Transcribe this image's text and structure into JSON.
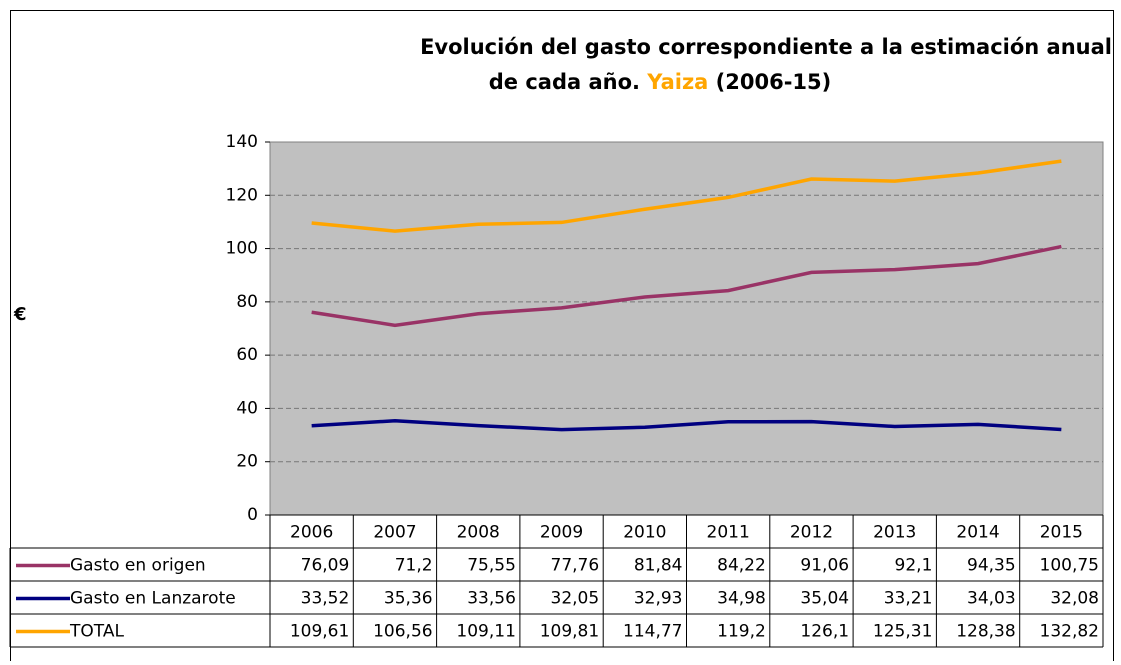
{
  "chart_data": {
    "type": "line",
    "title": [
      "Evolución del gasto correspondiente a la estimación anual",
      "de cada año.",
      "Yaiza",
      "(2006-15)"
    ],
    "title_highlight_color": "#ffa500",
    "y_label": "€",
    "categories": [
      "2006",
      "2007",
      "2008",
      "2009",
      "2010",
      "2011",
      "2012",
      "2013",
      "2014",
      "2015"
    ],
    "series": [
      {
        "name": "Gasto en origen",
        "color": "#993366",
        "values": [
          76.09,
          71.2,
          75.55,
          77.76,
          81.84,
          84.22,
          91.06,
          92.1,
          94.35,
          100.75
        ],
        "value_labels": [
          "76,09",
          "71,2",
          "75,55",
          "77,76",
          "81,84",
          "84,22",
          "91,06",
          "92,1",
          "94,35",
          "100,75"
        ]
      },
      {
        "name": "Gasto en Lanzarote",
        "color": "#000080",
        "values": [
          33.52,
          35.36,
          33.56,
          32.05,
          32.93,
          34.98,
          35.04,
          33.21,
          34.03,
          32.08
        ],
        "value_labels": [
          "33,52",
          "35,36",
          "33,56",
          "32,05",
          "32,93",
          "34,98",
          "35,04",
          "33,21",
          "34,03",
          "32,08"
        ]
      },
      {
        "name": "TOTAL",
        "color": "#ffa500",
        "values": [
          109.61,
          106.56,
          109.11,
          109.81,
          114.77,
          119.2,
          126.1,
          125.31,
          128.38,
          132.82
        ],
        "value_labels": [
          "109,61",
          "106,56",
          "109,11",
          "109,81",
          "114,77",
          "119,2",
          "126,1",
          "125,31",
          "128,38",
          "132,82"
        ]
      }
    ],
    "ylim": [
      0,
      140
    ],
    "yticks": [
      0,
      20,
      40,
      60,
      80,
      100,
      120,
      140
    ],
    "grid": true
  }
}
